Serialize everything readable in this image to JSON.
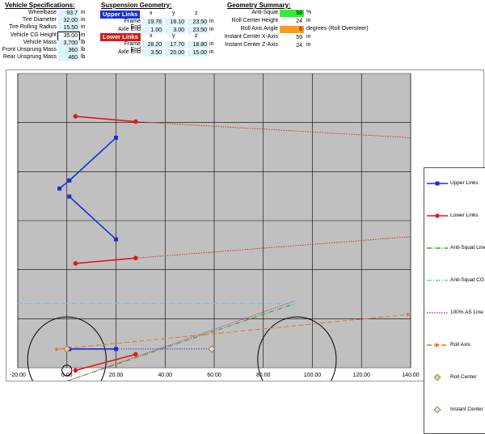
{
  "vehicle_specs": {
    "title": "Vehicle Specifications:",
    "rows": [
      {
        "label": "Wheelbase",
        "value": "93.7",
        "unit": "in"
      },
      {
        "label": "Tire Diameter",
        "value": "32.00",
        "unit": "in"
      },
      {
        "label": "Tire Rolling Radius",
        "value": "15.50",
        "unit": "in"
      },
      {
        "label": "Vehicle CG Height",
        "value": "35.00",
        "unit": "in"
      },
      {
        "label": "Vehicle Mass",
        "value": "3,700",
        "unit": "lb"
      },
      {
        "label": "Front Unsprung Mass",
        "value": "360",
        "unit": "lb"
      },
      {
        "label": "Rear Unsprung Mass",
        "value": "460",
        "unit": "lb"
      }
    ]
  },
  "suspension": {
    "title": "Suspension Geometry:",
    "upper_label": "Upper Links",
    "lower_label": "Lower Links",
    "cols": [
      "x",
      "y",
      "z"
    ],
    "upper": [
      {
        "label": "Frame End",
        "values": [
          "19.76",
          "16.10",
          "23.50"
        ],
        "unit": "in"
      },
      {
        "label": "Axle End",
        "values": [
          "1.00",
          "3.00",
          "23.50"
        ],
        "unit": "in"
      }
    ],
    "lower": [
      {
        "label": "Frame End",
        "values": [
          "28.20",
          "17.70",
          "18.80"
        ],
        "unit": "in"
      },
      {
        "label": "Axle End",
        "values": [
          "3.50",
          "20.00",
          "15.00"
        ],
        "unit": "in"
      }
    ]
  },
  "geometry": {
    "title": "Geometry Summary:",
    "rows": [
      {
        "label": "Anti-Squat",
        "value": "98",
        "unit": "%",
        "highlight": "#33ee33"
      },
      {
        "label": "Roll Center Height",
        "value": "24",
        "unit": "in",
        "highlight": ""
      },
      {
        "label": "Roll Axis Angle",
        "value": "6",
        "unit": "degrees (Roll Oversteer)",
        "highlight": "#ff9a1a"
      },
      {
        "label": "Instant Center X-Axis",
        "value": "59",
        "unit": "in",
        "highlight": ""
      },
      {
        "label": "Instant Center Z-Axis",
        "value": "24",
        "unit": "in",
        "highlight": ""
      }
    ]
  },
  "chart_data": {
    "type": "scatter",
    "xlim": [
      -20,
      140
    ],
    "ylim": [
      -10,
      100
    ],
    "x_ticks": [
      "-20.00",
      "0.00",
      "20.00",
      "40.00",
      "60.00",
      "80.00",
      "100.00",
      "120.00",
      "140.00"
    ],
    "grid": true,
    "legend_position": "right",
    "series": [
      {
        "name": "Upper Links",
        "color": "#1a2fd6",
        "style": "solid-marker",
        "segments": [
          [
            [
              20,
              76
            ],
            [
              1,
              60
            ]
          ],
          [
            [
              -3,
              57
            ],
            [
              1,
              60
            ]
          ],
          [
            [
              1,
              54
            ],
            [
              20,
              38
            ]
          ],
          [
            [
              1,
              -3
            ],
            [
              20,
              -3
            ]
          ]
        ]
      },
      {
        "name": "Lower Links",
        "color": "#e01818",
        "style": "solid-marker",
        "segments": [
          [
            [
              3.5,
              84
            ],
            [
              28,
              82
            ]
          ],
          [
            [
              3.5,
              29
            ],
            [
              28,
              31
            ]
          ],
          [
            [
              3.5,
              -11
            ],
            [
              28,
              -5
            ]
          ]
        ]
      },
      {
        "name": "Anti-Squat Line",
        "color": "#22aa22",
        "style": "dash-dot",
        "segments": [
          [
            [
              0,
              -15
            ],
            [
              93,
              14
            ]
          ]
        ]
      },
      {
        "name": "Anti-Squat CG",
        "color": "#66ccdd",
        "style": "dash-dot",
        "segments": [
          [
            [
              -20,
              14
            ],
            [
              93,
              14
            ]
          ]
        ]
      },
      {
        "name": "100% AS Line",
        "color": "#cc3399",
        "style": "dotted",
        "segments": [
          [
            [
              0,
              -15
            ],
            [
              93,
              15
            ]
          ]
        ]
      },
      {
        "name": "Roll Axis",
        "color": "#f07020",
        "style": "dash-arrow",
        "segments": [
          [
            [
              -3,
              -3
            ],
            [
              140,
              10
            ]
          ]
        ]
      },
      {
        "name": "Roll Center",
        "color": "#e8d080",
        "style": "diamond",
        "points": [
          [
            0,
            -3
          ]
        ]
      },
      {
        "name": "Instant Center",
        "color": "#f6d6b0",
        "style": "diamond",
        "points": [
          [
            59,
            -3
          ]
        ]
      }
    ],
    "extra_lines": [
      {
        "color": "#e01818",
        "style": "dotted",
        "from": [
          28,
          82
        ],
        "to": [
          140,
          76
        ]
      },
      {
        "color": "#e01818",
        "style": "dotted",
        "from": [
          28,
          31
        ],
        "to": [
          140,
          39
        ]
      },
      {
        "color": "#1a2fd6",
        "style": "dotted",
        "from": [
          20,
          -3
        ],
        "to": [
          59,
          -3
        ]
      }
    ],
    "circles": [
      {
        "cx": 0,
        "cy": -7,
        "r": 16
      },
      {
        "cx": 93.7,
        "cy": -7,
        "r": 16
      },
      {
        "cx": 0,
        "cy": -11,
        "r": 2
      }
    ]
  }
}
